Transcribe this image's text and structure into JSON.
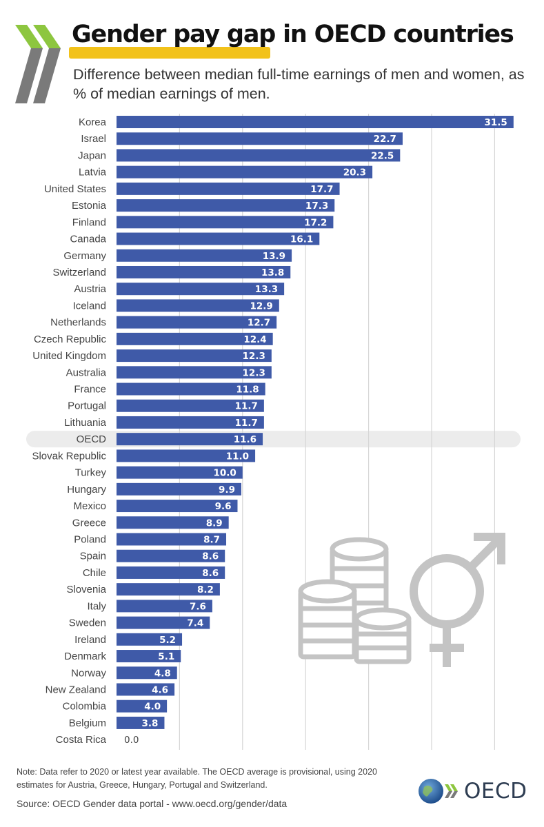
{
  "header": {
    "title": "Gender pay gap in OECD countries",
    "subtitle": "Difference between median full-time earnings of men and women, as % of median earnings of men."
  },
  "chart_data": {
    "type": "bar",
    "orientation": "horizontal",
    "categories": [
      "Korea",
      "Israel",
      "Japan",
      "Latvia",
      "United States",
      "Estonia",
      "Finland",
      "Canada",
      "Germany",
      "Switzerland",
      "Austria",
      "Iceland",
      "Netherlands",
      "Czech Republic",
      "United Kingdom",
      "Australia",
      "France",
      "Portugal",
      "Lithuania",
      "OECD",
      "Slovak Republic",
      "Turkey",
      "Hungary",
      "Mexico",
      "Greece",
      "Poland",
      "Spain",
      "Chile",
      "Slovenia",
      "Italy",
      "Sweden",
      "Ireland",
      "Denmark",
      "Norway",
      "New Zealand",
      "Colombia",
      "Belgium",
      "Costa Rica"
    ],
    "values": [
      31.5,
      22.7,
      22.5,
      20.3,
      17.7,
      17.3,
      17.2,
      16.1,
      13.9,
      13.8,
      13.3,
      12.9,
      12.7,
      12.4,
      12.3,
      12.3,
      11.8,
      11.7,
      11.7,
      11.6,
      11.0,
      10.0,
      9.9,
      9.6,
      8.9,
      8.7,
      8.6,
      8.6,
      8.2,
      7.6,
      7.4,
      5.2,
      5.1,
      4.8,
      4.6,
      4.0,
      3.8,
      0.0
    ],
    "value_labels": [
      "31.5",
      "22.7",
      "22.5",
      "20.3",
      "17.7",
      "17.3",
      "17.2",
      "16.1",
      "13.9",
      "13.8",
      "13.3",
      "12.9",
      "12.7",
      "12.4",
      "12.3",
      "12.3",
      "11.8",
      "11.7",
      "11.7",
      "11.6",
      "11.0",
      "10.0",
      "9.9",
      "9.6",
      "8.9",
      "8.7",
      "8.6",
      "8.6",
      "8.2",
      "7.6",
      "7.4",
      "5.2",
      "5.1",
      "4.8",
      "4.6",
      "4.0",
      "3.8",
      "0.0"
    ],
    "highlight": "OECD",
    "xlim": [
      0,
      32
    ],
    "grid": true,
    "bar_color": "#3f5aa8",
    "highlight_band_color": "#ececec"
  },
  "footer": {
    "note": "Note:  Data refer to 2020 or latest year available. The OECD average is provisional, using 2020 estimates for Austria, Greece, Hungary, Portugal and Switzerland.",
    "source": "Source: OECD Gender data portal - www.oecd.org/gender/data",
    "logo_text": "OECD"
  },
  "colors": {
    "chevron_green": "#8dc63f",
    "chevron_grey": "#7a7a7a",
    "title_highlight": "#f2c21a",
    "decor_grey": "#c4c4c4"
  },
  "icons": [
    "oecd-chevrons-icon",
    "coins-stack-icon",
    "gender-symbol-icon",
    "globe-icon"
  ]
}
